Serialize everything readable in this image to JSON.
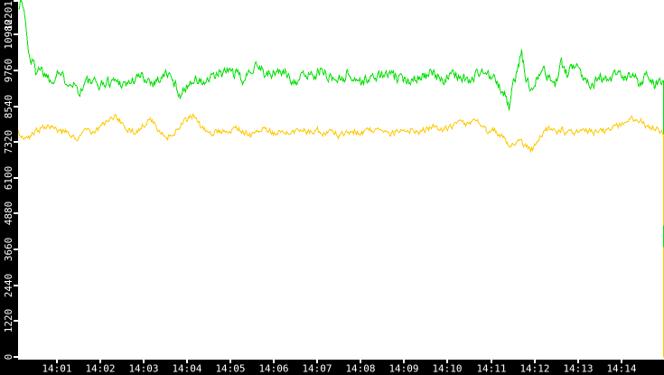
{
  "chart_data": {
    "type": "line",
    "background": "#ffffff",
    "axis_band_color": "#000000",
    "tick_color": "#ffffff",
    "label_color": "#ffffff",
    "x_axis": {
      "tick_labels": [
        "14:01",
        "14:02",
        "14:03",
        "14:04",
        "14:05",
        "14:06",
        "14:07",
        "14:08",
        "14:09",
        "14:10",
        "14:11",
        "14:12",
        "14:13",
        "14:14"
      ]
    },
    "y_axis": {
      "tick_labels": [
        "0",
        "1220",
        "2440",
        "3660",
        "4880",
        "6100",
        "7320",
        "8540",
        "9760",
        "10980",
        "12201"
      ],
      "ylim": [
        0,
        12201
      ]
    },
    "series": [
      {
        "name": "green-series",
        "color": "#00e000",
        "noise_amplitude": 270,
        "noise_seed": 1337,
        "final_drop_to_zero": true,
        "edge_segment": {
          "from": 4500,
          "to": 3750
        },
        "keypoints": [
          [
            20,
            11950
          ],
          [
            23,
            12190
          ],
          [
            26,
            11850
          ],
          [
            28,
            11350
          ],
          [
            30,
            10650
          ],
          [
            33,
            10150
          ],
          [
            36,
            10050
          ],
          [
            39,
            9750
          ],
          [
            42,
            9950
          ],
          [
            47,
            9750
          ],
          [
            52,
            9600
          ],
          [
            57,
            9380
          ],
          [
            63,
            9800
          ],
          [
            70,
            9480
          ],
          [
            80,
            9380
          ],
          [
            88,
            9050
          ],
          [
            95,
            9420
          ],
          [
            110,
            9280
          ],
          [
            125,
            9450
          ],
          [
            140,
            9320
          ],
          [
            155,
            9580
          ],
          [
            170,
            9380
          ],
          [
            185,
            9680
          ],
          [
            200,
            8950
          ],
          [
            212,
            9480
          ],
          [
            225,
            9330
          ],
          [
            240,
            9620
          ],
          [
            255,
            9780
          ],
          [
            270,
            9420
          ],
          [
            283,
            10080
          ],
          [
            295,
            9580
          ],
          [
            310,
            9780
          ],
          [
            325,
            9420
          ],
          [
            340,
            9640
          ],
          [
            355,
            9740
          ],
          [
            370,
            9460
          ],
          [
            385,
            9640
          ],
          [
            400,
            9380
          ],
          [
            415,
            9560
          ],
          [
            430,
            9640
          ],
          [
            445,
            9420
          ],
          [
            460,
            9560
          ],
          [
            475,
            9640
          ],
          [
            490,
            9500
          ],
          [
            505,
            9640
          ],
          [
            520,
            9420
          ],
          [
            532,
            9780
          ],
          [
            545,
            9500
          ],
          [
            552,
            9220
          ],
          [
            558,
            8950
          ],
          [
            563,
            8520
          ],
          [
            568,
            9300
          ],
          [
            573,
            9900
          ],
          [
            577,
            10380
          ],
          [
            582,
            9420
          ],
          [
            588,
            9120
          ],
          [
            594,
            9600
          ],
          [
            600,
            9880
          ],
          [
            607,
            9500
          ],
          [
            614,
            9320
          ],
          [
            621,
            10020
          ],
          [
            628,
            9580
          ],
          [
            638,
            10180
          ],
          [
            645,
            9480
          ],
          [
            655,
            9360
          ],
          [
            665,
            9580
          ],
          [
            673,
            9320
          ],
          [
            680,
            9640
          ],
          [
            690,
            9460
          ],
          [
            700,
            9580
          ],
          [
            708,
            9360
          ],
          [
            716,
            9680
          ],
          [
            724,
            9320
          ],
          [
            730,
            9500
          ],
          [
            733,
            9260
          ]
        ]
      },
      {
        "name": "yellow-series",
        "color": "#ffc800",
        "noise_amplitude": 150,
        "noise_seed": 777,
        "final_drop_to_zero": true,
        "keypoints": [
          [
            20,
            7700
          ],
          [
            25,
            7500
          ],
          [
            30,
            7420
          ],
          [
            36,
            7600
          ],
          [
            42,
            7760
          ],
          [
            48,
            7860
          ],
          [
            54,
            7940
          ],
          [
            60,
            7800
          ],
          [
            66,
            7620
          ],
          [
            72,
            7700
          ],
          [
            78,
            7560
          ],
          [
            84,
            7460
          ],
          [
            90,
            7600
          ],
          [
            96,
            7740
          ],
          [
            102,
            7660
          ],
          [
            108,
            7800
          ],
          [
            114,
            7960
          ],
          [
            120,
            8090
          ],
          [
            127,
            8190
          ],
          [
            134,
            7990
          ],
          [
            140,
            7800
          ],
          [
            147,
            7660
          ],
          [
            154,
            7800
          ],
          [
            160,
            7950
          ],
          [
            166,
            8140
          ],
          [
            172,
            7900
          ],
          [
            178,
            7700
          ],
          [
            185,
            7460
          ],
          [
            192,
            7660
          ],
          [
            200,
            7900
          ],
          [
            207,
            8140
          ],
          [
            213,
            8230
          ],
          [
            220,
            7950
          ],
          [
            227,
            7700
          ],
          [
            234,
            7600
          ],
          [
            241,
            7740
          ],
          [
            248,
            7650
          ],
          [
            255,
            7750
          ],
          [
            262,
            7840
          ],
          [
            270,
            7650
          ],
          [
            278,
            7560
          ],
          [
            286,
            7700
          ],
          [
            294,
            7790
          ],
          [
            302,
            7650
          ],
          [
            310,
            7750
          ],
          [
            318,
            7610
          ],
          [
            326,
            7700
          ],
          [
            334,
            7790
          ],
          [
            342,
            7650
          ],
          [
            350,
            7750
          ],
          [
            358,
            7610
          ],
          [
            366,
            7700
          ],
          [
            374,
            7560
          ],
          [
            382,
            7650
          ],
          [
            390,
            7740
          ],
          [
            398,
            7610
          ],
          [
            406,
            7700
          ],
          [
            414,
            7790
          ],
          [
            422,
            7650
          ],
          [
            430,
            7560
          ],
          [
            438,
            7700
          ],
          [
            446,
            7610
          ],
          [
            454,
            7740
          ],
          [
            462,
            7650
          ],
          [
            470,
            7750
          ],
          [
            478,
            7840
          ],
          [
            486,
            7700
          ],
          [
            494,
            7800
          ],
          [
            502,
            7890
          ],
          [
            510,
            8040
          ],
          [
            518,
            7950
          ],
          [
            526,
            8040
          ],
          [
            533,
            7850
          ],
          [
            540,
            7700
          ],
          [
            547,
            7750
          ],
          [
            553,
            7600
          ],
          [
            559,
            7400
          ],
          [
            565,
            7210
          ],
          [
            571,
            7400
          ],
          [
            577,
            7300
          ],
          [
            583,
            7160
          ],
          [
            589,
            7110
          ],
          [
            595,
            7450
          ],
          [
            601,
            7700
          ],
          [
            608,
            7790
          ],
          [
            615,
            7660
          ],
          [
            622,
            7750
          ],
          [
            630,
            7650
          ],
          [
            638,
            7740
          ],
          [
            646,
            7650
          ],
          [
            654,
            7740
          ],
          [
            662,
            7660
          ],
          [
            670,
            7750
          ],
          [
            678,
            7840
          ],
          [
            686,
            7940
          ],
          [
            694,
            8040
          ],
          [
            702,
            8140
          ],
          [
            708,
            8090
          ],
          [
            714,
            7950
          ],
          [
            720,
            7850
          ],
          [
            726,
            7760
          ],
          [
            733,
            7660
          ]
        ]
      }
    ]
  }
}
